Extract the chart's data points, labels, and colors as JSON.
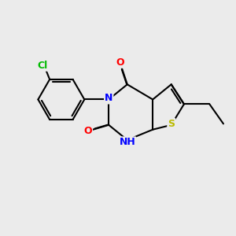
{
  "bg_color": "#ebebeb",
  "bond_color": "#000000",
  "N_color": "#0000ff",
  "O_color": "#ff0000",
  "S_color": "#bbbb00",
  "Cl_color": "#00bb00",
  "line_width": 1.5,
  "font_size": 9,
  "figsize": [
    3.0,
    3.0
  ],
  "dpi": 100,
  "xlim": [
    0,
    10
  ],
  "ylim": [
    0,
    10
  ]
}
